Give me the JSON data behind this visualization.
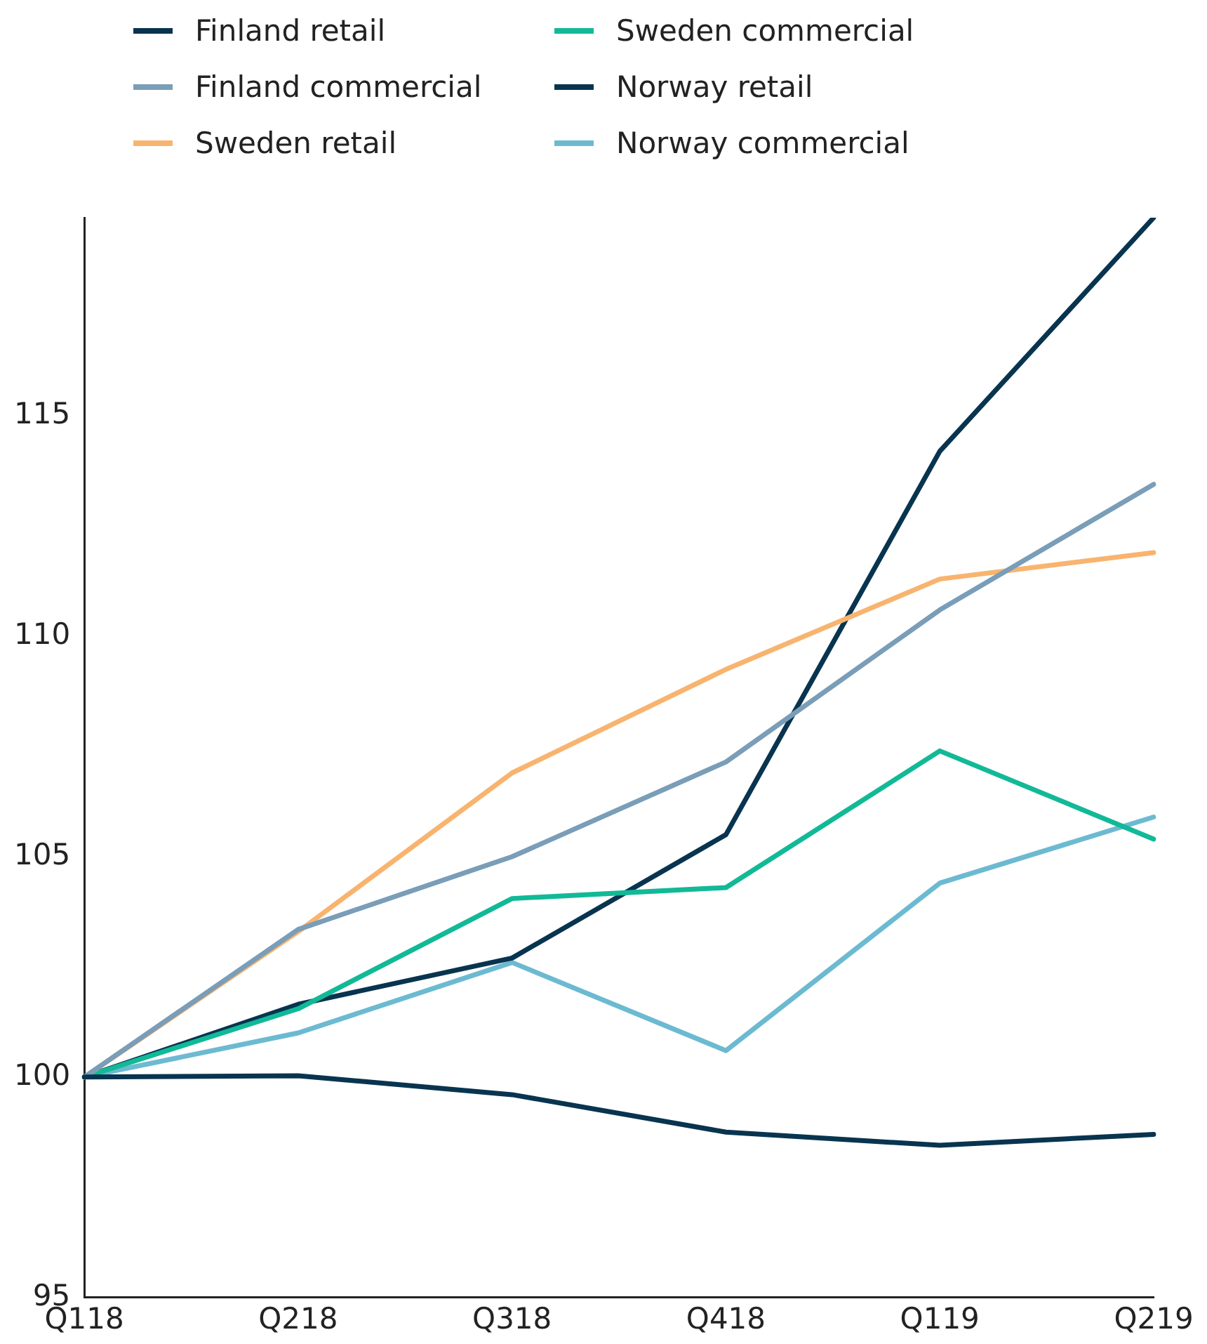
{
  "chart_data": {
    "type": "line",
    "categories": [
      "Q118",
      "Q218",
      "Q318",
      "Q418",
      "Q119",
      "Q219"
    ],
    "series": [
      {
        "name": "Finland retail",
        "color": "#08344f",
        "values": [
          100,
          100.03,
          99.6,
          98.75,
          98.45,
          98.7
        ]
      },
      {
        "name": "Finland commercial",
        "color": "#7a9db8",
        "values": [
          100,
          103.35,
          105.0,
          107.15,
          110.6,
          113.45
        ]
      },
      {
        "name": "Sweden retail",
        "color": "#f8b46f",
        "values": [
          100,
          103.3,
          106.9,
          109.25,
          111.3,
          111.9
        ]
      },
      {
        "name": "Sweden commercial",
        "color": "#12b997",
        "values": [
          100,
          101.55,
          104.05,
          104.3,
          107.4,
          105.4
        ]
      },
      {
        "name": "Norway retail",
        "color": "#08344f",
        "values": [
          100,
          101.65,
          102.7,
          105.5,
          114.2,
          119.5
        ]
      },
      {
        "name": "Norway commercial",
        "color": "#6cbad1",
        "values": [
          100,
          101.0,
          102.6,
          100.6,
          104.4,
          105.9
        ]
      }
    ],
    "ylim": [
      95,
      119.5
    ],
    "yticks": [
      95,
      100,
      105,
      110,
      115
    ],
    "grid": false,
    "legend": "top",
    "marker": "none",
    "line_style": "solid"
  }
}
